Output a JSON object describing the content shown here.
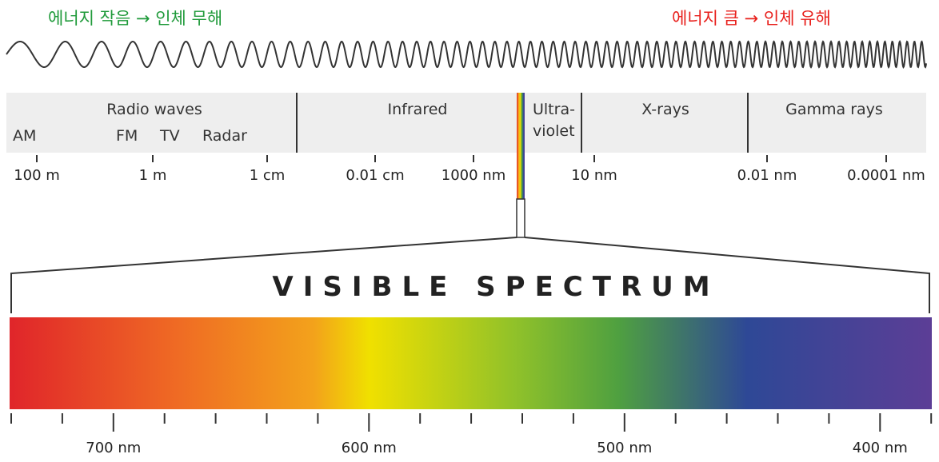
{
  "header": {
    "left_text": "에너지 작음 → 인체 무해",
    "right_text": "에너지 큼 → 인체 유해",
    "left_color": "#1f9a3a",
    "right_color": "#e8201c"
  },
  "bands": {
    "radio_waves": "Radio waves",
    "am": "AM",
    "fm": "FM",
    "tv": "TV",
    "radar": "Radar",
    "infrared": "Infrared",
    "ultraviolet_line1": "Ultra-",
    "ultraviolet_line2": "violet",
    "xrays": "X-rays",
    "gamma": "Gamma rays"
  },
  "wavelength_scale": [
    "100 m",
    "1 m",
    "1 cm",
    "0.01 cm",
    "1000 nm",
    "10 nm",
    "0.01 nm",
    "0.0001 nm"
  ],
  "visible": {
    "title": "VISIBLE SPECTRUM",
    "gradient_colors": [
      "#e0252a",
      "#ef6a24",
      "#f3a21b",
      "#f0e000",
      "#8fc12a",
      "#4fa040",
      "#2e4896",
      "#5c3e96"
    ],
    "scale_labels": [
      "700 nm",
      "600 nm",
      "500 nm",
      "400 nm"
    ]
  },
  "colors": {
    "band_bg": "#eeeeee",
    "divider": "#333333",
    "wave": "#333333"
  }
}
